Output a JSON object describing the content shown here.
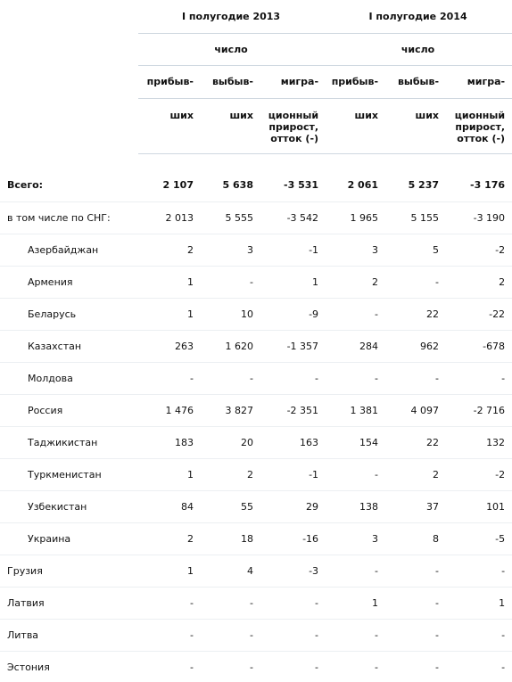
{
  "header": {
    "periods": [
      "I полугодие 2013",
      "I полугодие 2014"
    ],
    "subheader": [
      "число",
      "число"
    ],
    "columns": [
      [
        "прибыв-",
        "ших"
      ],
      [
        "выбыв-",
        "ших"
      ],
      [
        "мигра-",
        "ционный прирост, отток (-)"
      ],
      [
        "прибыв-",
        "ших"
      ],
      [
        "выбыв-",
        "ших"
      ],
      [
        "мигра-",
        "ционный прирост, отток (-)"
      ]
    ]
  },
  "table": {
    "rows": [
      {
        "label": "Всего:",
        "cells": [
          "2 107",
          "5 638",
          "-3 531",
          "2 061",
          "5 237",
          "-3 176"
        ]
      },
      {
        "label": "в том числе по СНГ:",
        "cells": [
          "2 013",
          "5 555",
          "-3 542",
          "1 965",
          "5 155",
          "-3 190"
        ]
      },
      {
        "label": "Азербайджан",
        "cells": [
          "2",
          "3",
          "-1",
          "3",
          "5",
          "-2"
        ]
      },
      {
        "label": "Армения",
        "cells": [
          "1",
          "-",
          "1",
          "2",
          "-",
          "2"
        ]
      },
      {
        "label": "Беларусь",
        "cells": [
          "1",
          "10",
          "-9",
          "-",
          "22",
          "-22"
        ]
      },
      {
        "label": "Казахстан",
        "cells": [
          "263",
          "1 620",
          "-1 357",
          "284",
          "962",
          "-678"
        ]
      },
      {
        "label": "Молдова",
        "cells": [
          "-",
          "-",
          "-",
          "-",
          "-",
          "-"
        ]
      },
      {
        "label": "Россия",
        "cells": [
          "1 476",
          "3 827",
          "-2 351",
          "1 381",
          "4 097",
          "-2 716"
        ]
      },
      {
        "label": "Таджикистан",
        "cells": [
          "183",
          "20",
          "163",
          "154",
          "22",
          "132"
        ]
      },
      {
        "label": "Туркменистан",
        "cells": [
          "1",
          "2",
          "-1",
          "-",
          "2",
          "-2"
        ]
      },
      {
        "label": "Узбекистан",
        "cells": [
          "84",
          "55",
          "29",
          "138",
          "37",
          "101"
        ]
      },
      {
        "label": "Украина",
        "cells": [
          "2",
          "18",
          "-16",
          "3",
          "8",
          "-5"
        ]
      },
      {
        "label": "Грузия",
        "cells": [
          "1",
          "4",
          "-3",
          "-",
          "-",
          "-"
        ]
      },
      {
        "label": "Латвия",
        "cells": [
          "-",
          "-",
          "-",
          "1",
          "-",
          "1"
        ]
      },
      {
        "label": "Литва",
        "cells": [
          "-",
          "-",
          "-",
          "-",
          "-",
          "-"
        ]
      },
      {
        "label": "Эстония",
        "cells": [
          "-",
          "-",
          "-",
          "-",
          "-",
          "-"
        ]
      }
    ]
  }
}
